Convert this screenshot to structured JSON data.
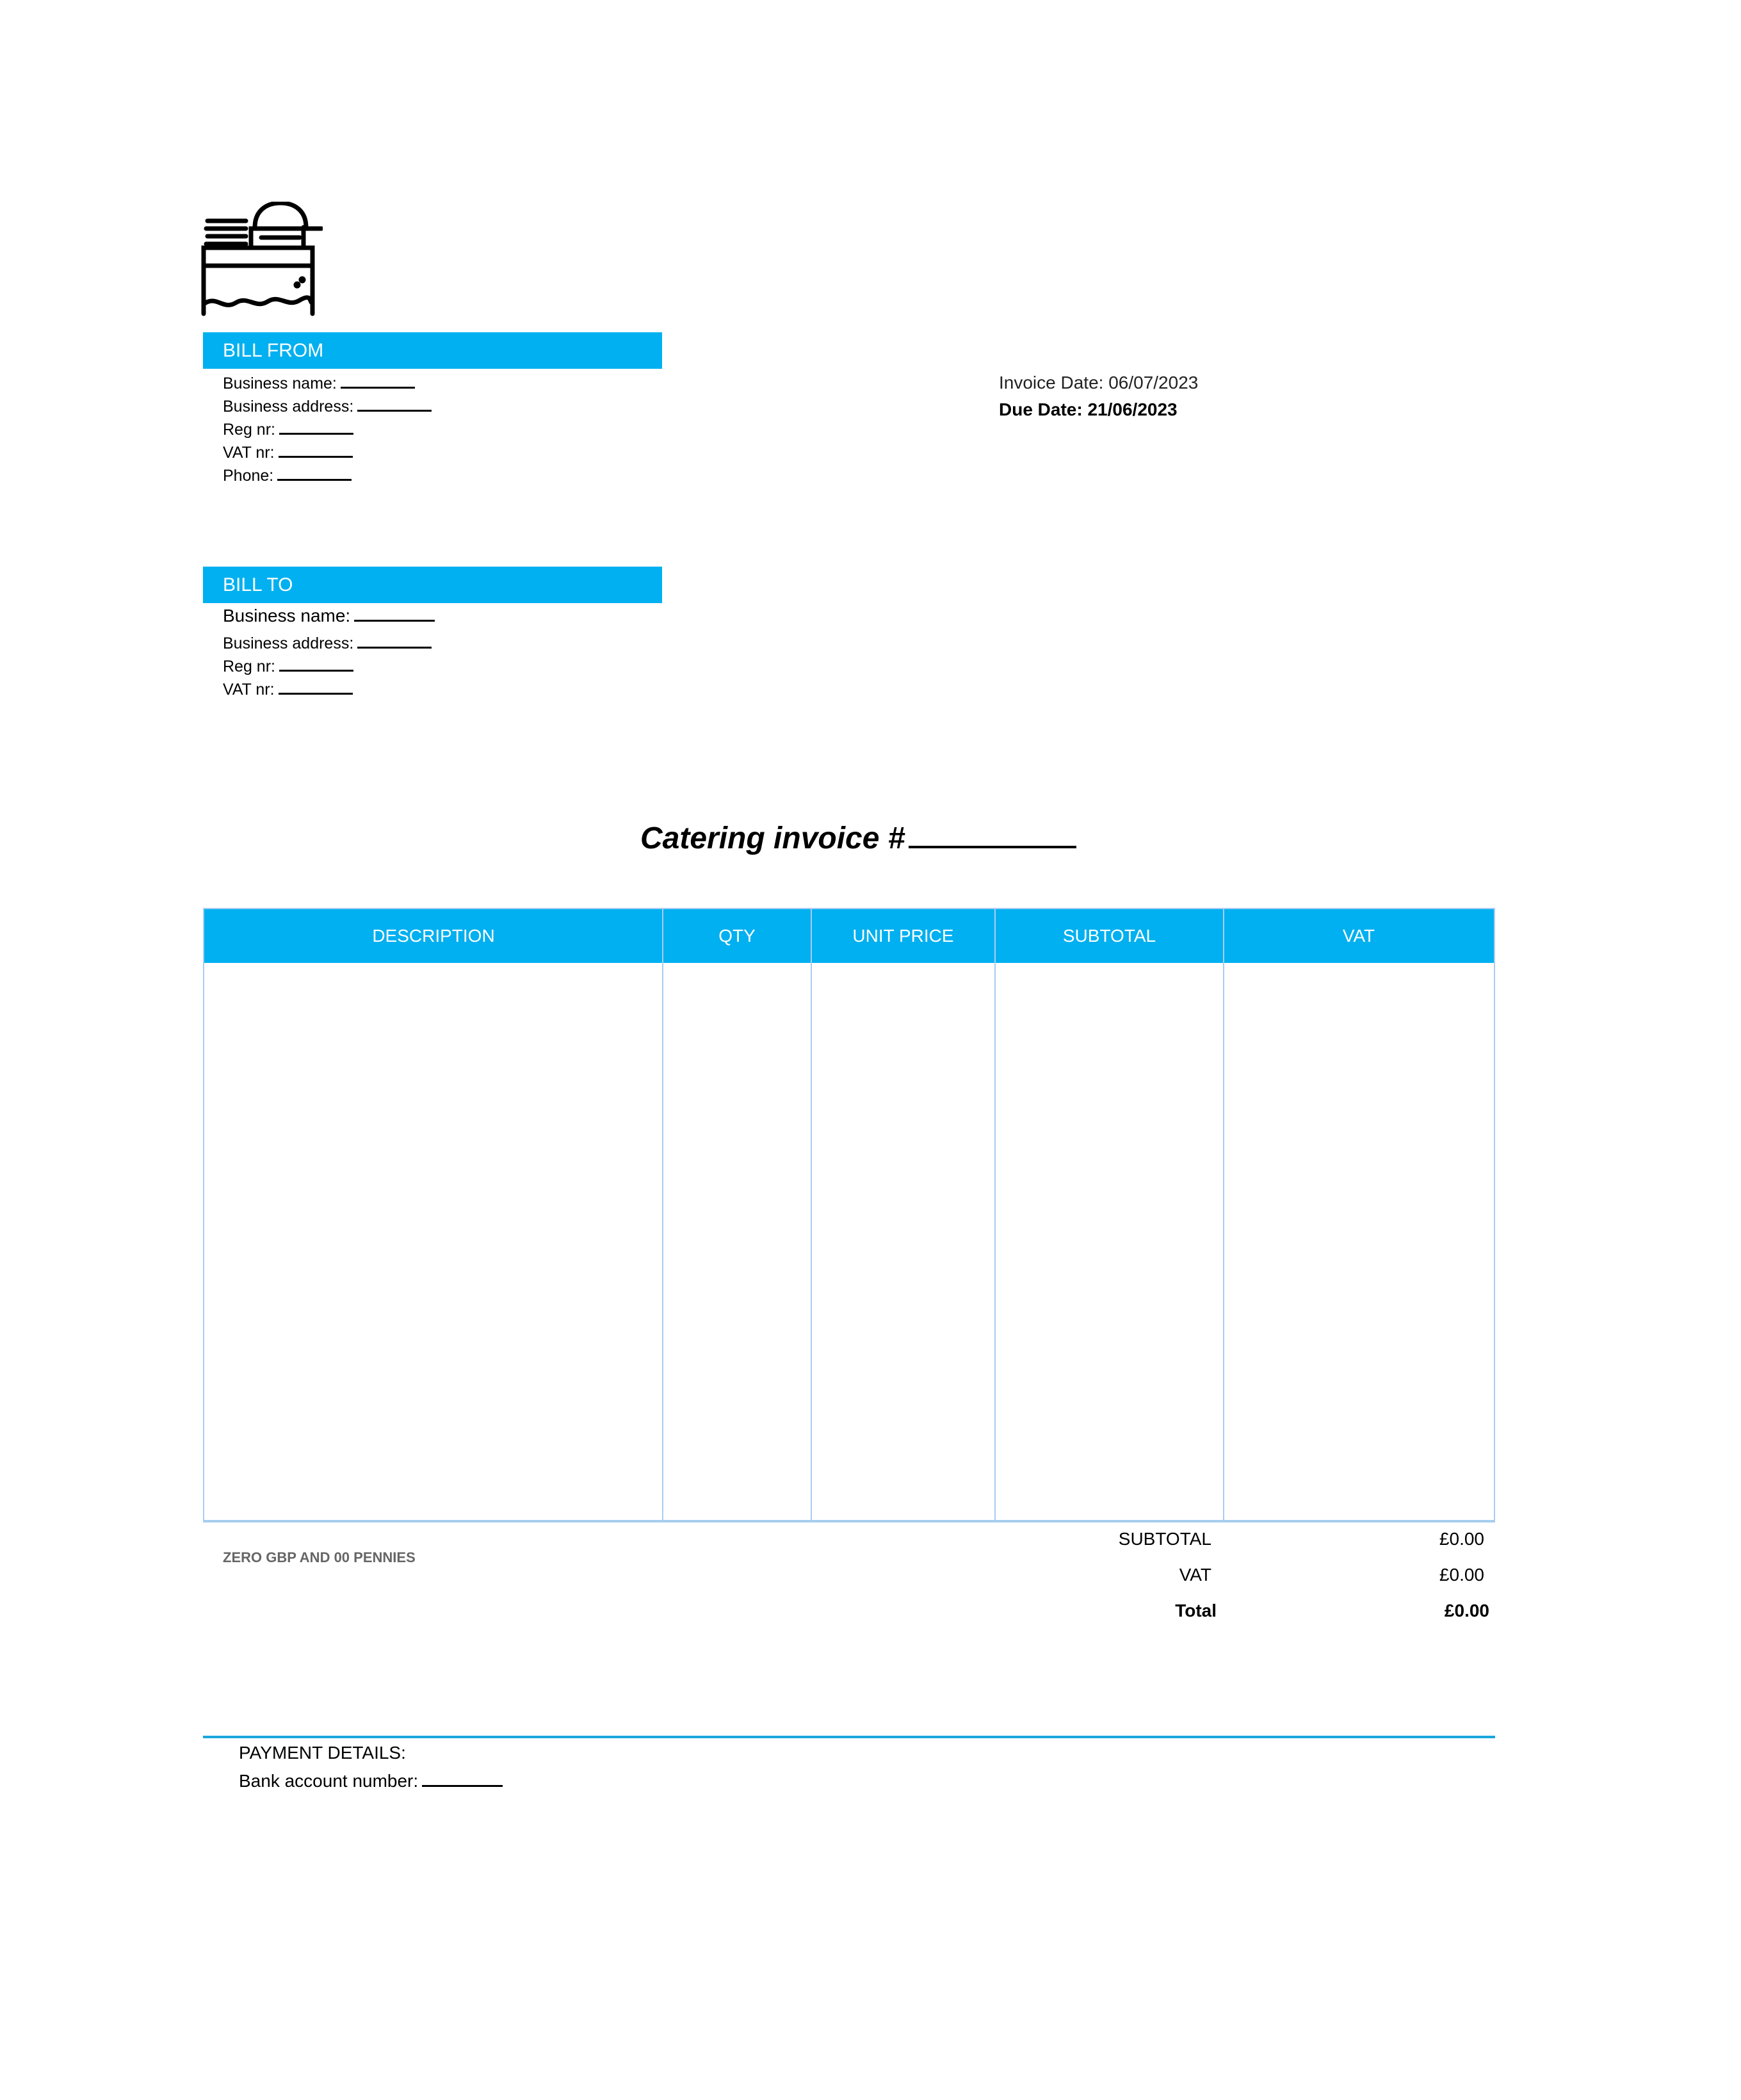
{
  "logo": {
    "icon": "catering-buffet-icon"
  },
  "bill_from": {
    "title": "BILL FROM",
    "fields": [
      "Business name:",
      "Business address:",
      "Reg nr:",
      "VAT nr:",
      "Phone:"
    ]
  },
  "bill_to": {
    "title": "BILL TO",
    "fields": [
      "Business name:",
      "Business address:",
      "Reg nr:",
      "VAT nr:"
    ]
  },
  "dates": {
    "invoice_date": "Invoice Date: 06/07/2023",
    "due_date": "Due Date: 21/06/2023"
  },
  "title": "Catering invoice #",
  "table": {
    "columns": [
      "DESCRIPTION",
      "QTY",
      "UNIT PRICE",
      "SUBTOTAL",
      "VAT"
    ],
    "rows": []
  },
  "amount_words": "ZERO GBP AND 00 PENNIES",
  "totals": {
    "subtotal_label": "SUBTOTAL",
    "subtotal": "£0.00",
    "vat_label": "VAT",
    "vat": "£0.00",
    "total_label": "Total",
    "total": "£0.00"
  },
  "payment": {
    "title": "PAYMENT DETAILS:",
    "bank": "Bank account number:"
  },
  "colors": {
    "accent": "#00b0f0",
    "border": "#a9cdf0"
  }
}
